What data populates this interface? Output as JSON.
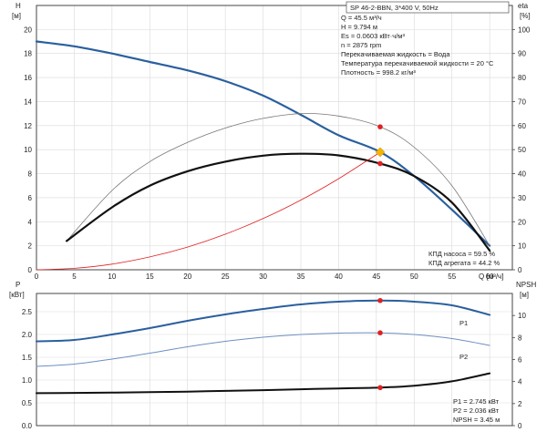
{
  "chart_data": [
    {
      "type": "line",
      "panel": "top",
      "title": "SP 46-2-BBN, 3*400 V, 50Hz",
      "left_axis": {
        "label_line1": "H",
        "label_line2": "[м]",
        "ticks": [
          0,
          2,
          4,
          6,
          8,
          10,
          12,
          14,
          16,
          18,
          20
        ],
        "ylim": [
          0,
          22
        ]
      },
      "right_axis": {
        "label_line1": "eta",
        "label_line2": "[%]",
        "ticks": [
          0,
          10,
          20,
          30,
          40,
          50,
          60,
          70,
          80,
          90,
          100
        ],
        "ylim": [
          0,
          110
        ]
      },
      "x_axis": {
        "label": "Q [м³/ч]",
        "ticks": [
          0,
          5,
          10,
          15,
          20,
          25,
          30,
          35,
          40,
          45,
          50,
          55,
          60
        ],
        "xlim": [
          0,
          63
        ]
      },
      "grid": true,
      "series": [
        {
          "key": "head",
          "color": "#2a5f9e",
          "width": 2.2,
          "axis": "left",
          "x": [
            0,
            5,
            10,
            15,
            20,
            25,
            30,
            35,
            40,
            45.5,
            50,
            55,
            60
          ],
          "y": [
            19.0,
            18.6,
            18.0,
            17.3,
            16.6,
            15.7,
            14.5,
            12.9,
            11.2,
            9.8,
            7.8,
            5.0,
            2.0
          ]
        },
        {
          "key": "pump_efficiency",
          "color": "#777777",
          "width": 0.8,
          "axis": "right",
          "x": [
            4,
            10,
            15,
            20,
            25,
            30,
            35,
            40,
            45.5,
            50,
            55,
            60
          ],
          "y": [
            12,
            33,
            45,
            53,
            59,
            63,
            65,
            64,
            59.5,
            51,
            35,
            10
          ]
        },
        {
          "key": "unit_efficiency",
          "color": "#111111",
          "width": 2.2,
          "axis": "right",
          "x": [
            4,
            10,
            15,
            20,
            25,
            30,
            35,
            40,
            45.5,
            50,
            55,
            60
          ],
          "y": [
            12,
            26,
            35,
            41,
            45,
            47.5,
            48.3,
            47.6,
            44.2,
            39,
            28,
            8
          ]
        },
        {
          "key": "system_curve",
          "color": "#e02020",
          "width": 0.8,
          "axis": "left",
          "x": [
            0,
            5,
            10,
            15,
            20,
            25,
            30,
            35,
            40,
            45.5
          ],
          "y": [
            0,
            0.12,
            0.47,
            1.07,
            1.89,
            2.96,
            4.26,
            5.8,
            7.58,
            9.79
          ]
        }
      ],
      "markers": [
        {
          "x": 45.5,
          "value": 59.5,
          "axis": "right",
          "color": "#e02020"
        },
        {
          "x": 45.5,
          "value": 44.2,
          "axis": "right",
          "color": "#e02020"
        },
        {
          "x": 45.5,
          "value": 9.794,
          "axis": "left",
          "color": "#f5b400",
          "shape": "diamond"
        }
      ],
      "info_lines": [
        "Q = 45.5 м³/ч",
        "H = 9.794 м",
        "Es = 0.0603 кВт·ч/м³",
        "n = 2875 rpm",
        "Перекачиваемая жидкость = Вода",
        "Температура перекачиваемой жидкости = 20 °C",
        "Плотность = 998.2 кг/м³"
      ],
      "efficiency_labels": [
        "КПД насоса = 59.5 %",
        "КПД агрегата = 44.2 %"
      ]
    },
    {
      "type": "line",
      "panel": "bottom",
      "left_axis": {
        "label_line1": "P",
        "label_line2": "[кВт]",
        "ticks": [
          "0.0",
          "0.5",
          "1.0",
          "1.5",
          "2.0",
          "2.5"
        ],
        "ylim": [
          0,
          2.9
        ]
      },
      "right_axis": {
        "label_line1": "NPSH",
        "label_line2": "[м]",
        "ticks": [
          0,
          2,
          4,
          6,
          8,
          10
        ],
        "ylim": [
          0,
          12
        ]
      },
      "x_axis": {
        "xlim": [
          0,
          63
        ]
      },
      "grid": true,
      "series": [
        {
          "key": "P1",
          "name": "P1",
          "color": "#2a5f9e",
          "width": 2.0,
          "axis": "left",
          "x": [
            0,
            5,
            10,
            15,
            20,
            25,
            30,
            35,
            40,
            45.5,
            50,
            55,
            60
          ],
          "y": [
            1.85,
            1.88,
            2.0,
            2.14,
            2.3,
            2.44,
            2.56,
            2.66,
            2.72,
            2.745,
            2.72,
            2.64,
            2.43
          ]
        },
        {
          "key": "P2",
          "name": "P2",
          "color": "#6d8fc2",
          "width": 1.0,
          "axis": "left",
          "x": [
            0,
            5,
            10,
            15,
            20,
            25,
            30,
            35,
            40,
            45.5,
            50,
            55,
            60
          ],
          "y": [
            1.3,
            1.35,
            1.46,
            1.59,
            1.73,
            1.85,
            1.94,
            2.0,
            2.03,
            2.036,
            2.0,
            1.91,
            1.76
          ]
        },
        {
          "key": "NPSH",
          "color": "#111111",
          "width": 2.0,
          "axis": "right",
          "x": [
            0,
            5,
            10,
            15,
            20,
            25,
            30,
            35,
            40,
            45.5,
            50,
            55,
            60
          ],
          "y": [
            2.95,
            2.97,
            3.0,
            3.04,
            3.09,
            3.15,
            3.22,
            3.3,
            3.38,
            3.45,
            3.62,
            4.02,
            4.75
          ]
        }
      ],
      "markers": [
        {
          "x": 45.5,
          "value": 2.745,
          "axis": "left",
          "color": "#e02020"
        },
        {
          "x": 45.5,
          "value": 2.036,
          "axis": "left",
          "color": "#e02020"
        },
        {
          "x": 45.5,
          "value": 3.45,
          "axis": "right",
          "color": "#e02020"
        }
      ],
      "value_labels": [
        "P1 = 2.745 кВт",
        "P2 = 2.036 кВт",
        "NPSH = 3.45 м"
      ]
    }
  ]
}
